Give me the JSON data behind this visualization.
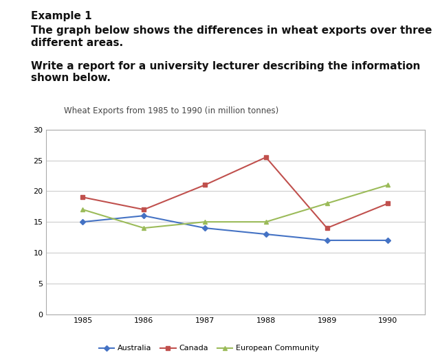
{
  "title": "Wheat Exports from 1985 to 1990 (in million tonnes)",
  "header_line1": "Example 1",
  "header_line2": "The graph below shows the differences in wheat exports over three\ndifferent areas.",
  "header_line3": "Write a report for a university lecturer describing the information\nshown below.",
  "years": [
    1985,
    1986,
    1987,
    1988,
    1989,
    1990
  ],
  "australia": [
    15,
    16,
    14,
    13,
    12,
    12
  ],
  "canada": [
    19,
    17,
    21,
    25.5,
    14,
    18
  ],
  "european_community": [
    17,
    14,
    15,
    15,
    18,
    21
  ],
  "australia_color": "#4472C4",
  "canada_color": "#C0504D",
  "ec_color": "#9BBB59",
  "ylim": [
    0,
    30
  ],
  "yticks": [
    0,
    5,
    10,
    15,
    20,
    25,
    30
  ],
  "legend_labels": [
    "Australia",
    "Canada",
    "European Community"
  ],
  "chart_bg": "#ffffff",
  "grid_color": "#cccccc",
  "title_fontsize": 8.5,
  "header_fontsize": 11
}
